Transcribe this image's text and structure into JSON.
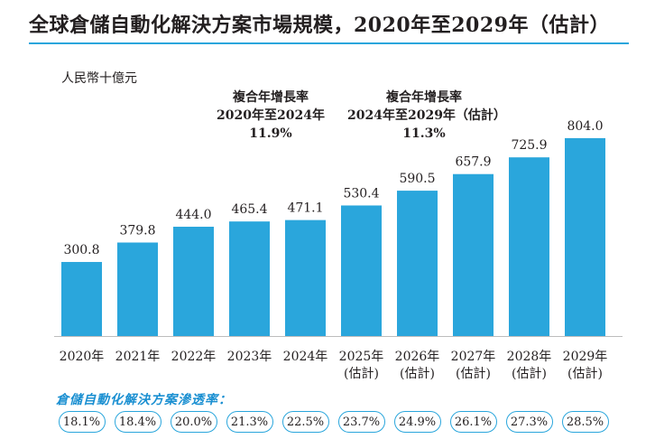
{
  "title": "全球倉儲自動化解決方案市場規模，2020年至2029年（估計）",
  "unit": "人民幣十億元",
  "cagr_left": {
    "line1": "複合年增長率",
    "line2": "2020年至2024年",
    "line3": "11.9%"
  },
  "cagr_right": {
    "line1": "複合年增長率",
    "line2": "2024年至2029年（估計）",
    "line3": "11.3%"
  },
  "penetration_label": "倉儲自動化解決方案滲透率：",
  "penetration": [
    "18.1%",
    "18.4%",
    "20.0%",
    "21.3%",
    "22.5%",
    "23.7%",
    "24.9%",
    "26.1%",
    "27.3%",
    "28.5%"
  ],
  "colors": {
    "bar": "#2aa6dc",
    "accent": "#1a8fd1"
  },
  "chart_data": {
    "type": "bar",
    "categories": [
      "2020年",
      "2021年",
      "2022年",
      "2023年",
      "2024年",
      "2025年\n(估計)",
      "2026年\n(估計)",
      "2027年\n(估計)",
      "2028年\n(估計)",
      "2029年\n(估計)"
    ],
    "values": [
      300.8,
      379.8,
      444.0,
      465.4,
      471.1,
      530.4,
      590.5,
      657.9,
      725.9,
      804.0
    ],
    "value_labels": [
      "300.8",
      "379.8",
      "444.0",
      "465.4",
      "471.1",
      "530.4",
      "590.5",
      "657.9",
      "725.9",
      "804.0"
    ],
    "ylabel": "人民幣十億元",
    "ylim": [
      0,
      880
    ],
    "grid": false,
    "title": "全球倉儲自動化解決方案市場規模，2020年至2029年（估計）"
  }
}
